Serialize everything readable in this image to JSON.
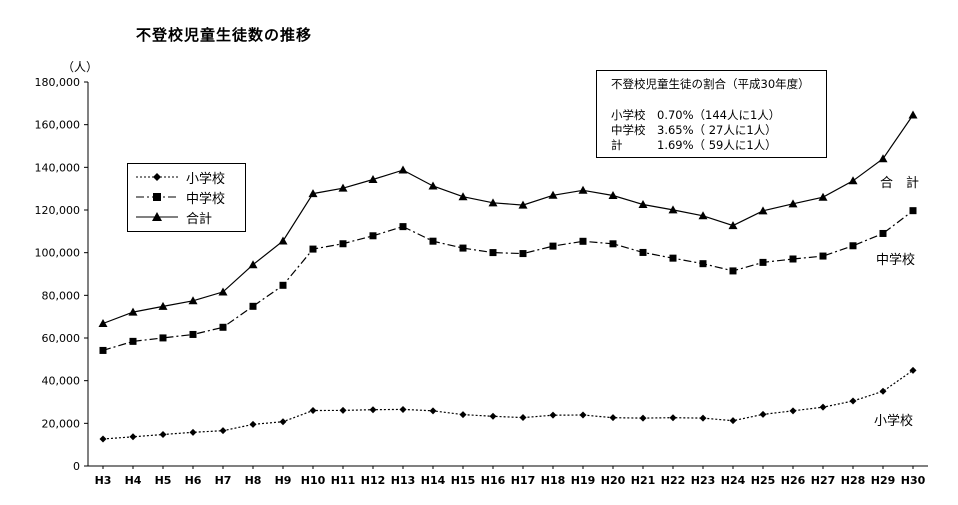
{
  "chart_data": {
    "type": "line",
    "title": "不登校児童生徒数の推移",
    "ylabel": "（人）",
    "ylim": [
      0,
      180000
    ],
    "yticks": [
      "0",
      "20,000",
      "40,000",
      "60,000",
      "80,000",
      "100,000",
      "120,000",
      "140,000",
      "160,000",
      "180,000"
    ],
    "categories": [
      "H3",
      "H4",
      "H5",
      "H6",
      "H7",
      "H8",
      "H9",
      "H10",
      "H11",
      "H12",
      "H13",
      "H14",
      "H15",
      "H16",
      "H17",
      "H18",
      "H19",
      "H20",
      "H21",
      "H22",
      "H23",
      "H24",
      "H25",
      "H26",
      "H27",
      "H28",
      "H29",
      "H30"
    ],
    "series": [
      {
        "name": "小学校",
        "marker": "diamond",
        "dash": "dotted",
        "values": [
          12645,
          13710,
          14769,
          15786,
          16569,
          19498,
          20765,
          26017,
          26047,
          26373,
          26511,
          25869,
          24077,
          23318,
          22709,
          23825,
          23927,
          22652,
          22463,
          22622,
          22463,
          21243,
          24175,
          25864,
          27583,
          30448,
          35032,
          44841
        ]
      },
      {
        "name": "中学校",
        "marker": "square",
        "dash": "dashdot",
        "values": [
          54172,
          58421,
          60039,
          61663,
          65022,
          74853,
          84701,
          101675,
          104180,
          107913,
          112211,
          105383,
          102149,
          100040,
          99578,
          103069,
          105328,
          104153,
          100105,
          97428,
          94836,
          91446,
          95442,
          97033,
          98408,
          103235,
          108999,
          119687
        ]
      },
      {
        "name": "合計",
        "marker": "triangle",
        "dash": "solid",
        "values": [
          66817,
          72131,
          74808,
          77449,
          81591,
          94351,
          105466,
          127692,
          130227,
          134286,
          138722,
          131252,
          126226,
          123358,
          122287,
          126894,
          129255,
          126805,
          122568,
          120050,
          117299,
          112689,
          119617,
          122897,
          125991,
          133683,
          144031,
          164528
        ]
      }
    ],
    "series_labels_right": {
      "total": "合　計",
      "junior": "中学校",
      "elementary": "小学校"
    },
    "grid": false,
    "legend": "left"
  },
  "infobox": {
    "title": "不登校児童生徒の割合（平成30年度）",
    "rows": [
      "小学校　0.70%（144人に1人）",
      "中学校　3.65%（ 27人に1人）",
      "計　　　1.69%（ 59人に1人）"
    ]
  }
}
